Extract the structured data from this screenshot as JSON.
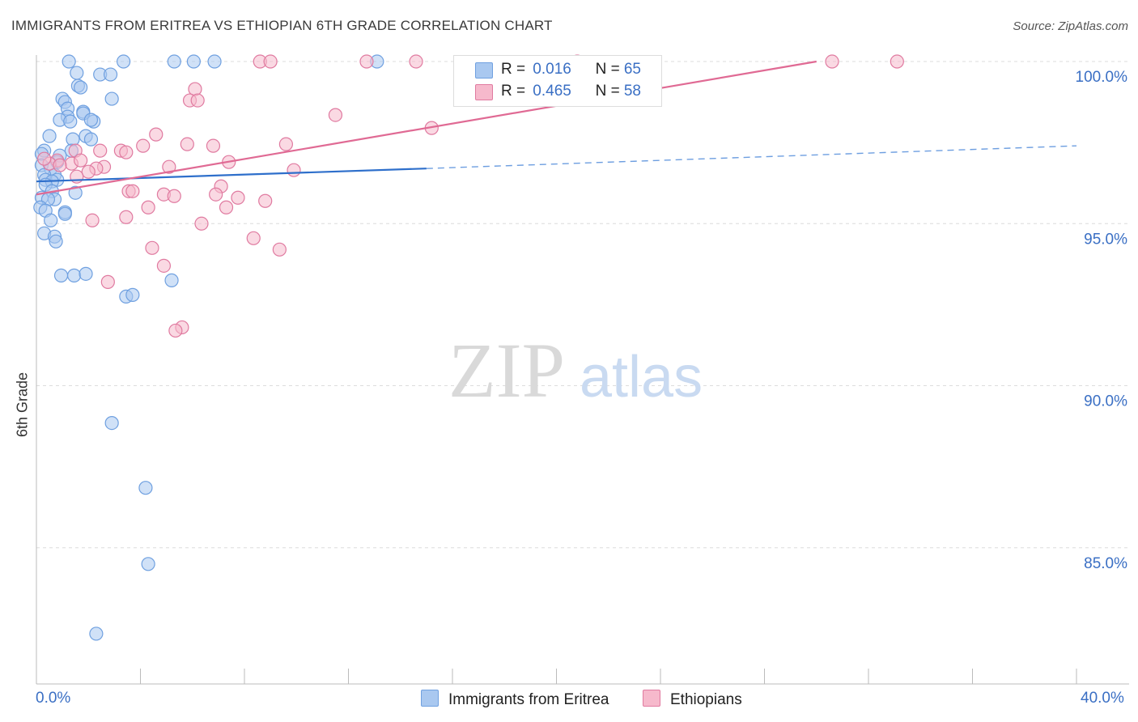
{
  "title": "IMMIGRANTS FROM ERITREA VS ETHIOPIAN 6TH GRADE CORRELATION CHART",
  "source_prefix": "Source: ",
  "source_name": "ZipAtlas.com",
  "watermark": {
    "part1": "ZIP",
    "part2": "atlas"
  },
  "legend": {
    "rows": [
      {
        "r_label": "R =",
        "r_value": "0.016",
        "n_label": "N =",
        "n_value": "65",
        "color": "#a9c8f0"
      },
      {
        "r_label": "R =",
        "r_value": "0.465",
        "n_label": "N =",
        "n_value": "58",
        "color": "#f6b9cc"
      }
    ]
  },
  "bottom_legend": [
    {
      "label": "Immigrants from Eritrea",
      "color": "#a9c8f0"
    },
    {
      "label": "Ethiopians",
      "color": "#f6b9cc"
    }
  ],
  "axis": {
    "x_min_label": "0.0%",
    "x_max_label": "40.0%",
    "ylabel": "6th Grade"
  },
  "chart_data": {
    "type": "scatter",
    "title": "IMMIGRANTS FROM ERITREA VS ETHIOPIAN 6TH GRADE CORRELATION CHART",
    "xlabel": "",
    "ylabel": "6th Grade",
    "xlim": [
      0,
      40
    ],
    "ylim": [
      80.8,
      100.4
    ],
    "y_ticks": [
      85,
      90,
      95,
      100
    ],
    "y_tick_labels": [
      "85.0%",
      "90.0%",
      "95.0%",
      "100.0%"
    ],
    "x_tick_labels": [
      "0.0%",
      "40.0%"
    ],
    "grid": "horizontal dashed",
    "series": [
      {
        "name": "Immigrants from Eritrea",
        "color": "#6fa0e0",
        "fill": "#a9c8f0",
        "r": 0.016,
        "n": 65,
        "trend": {
          "x0": 0.0,
          "y0": 96.3,
          "x1": 15.0,
          "y1": 96.7,
          "dashed_to_x": 40.0,
          "dashed_to_y": 97.4
        },
        "points": [
          [
            1.25,
            100.0
          ],
          [
            3.35,
            100.0
          ],
          [
            5.3,
            100.0
          ],
          [
            6.05,
            100.0
          ],
          [
            6.85,
            100.0
          ],
          [
            13.1,
            100.0
          ],
          [
            1.55,
            99.65
          ],
          [
            2.45,
            99.6
          ],
          [
            2.85,
            99.6
          ],
          [
            1.6,
            99.25
          ],
          [
            1.7,
            99.2
          ],
          [
            1.0,
            98.85
          ],
          [
            2.9,
            98.85
          ],
          [
            1.1,
            98.75
          ],
          [
            1.2,
            98.55
          ],
          [
            1.8,
            98.45
          ],
          [
            1.8,
            98.4
          ],
          [
            1.2,
            98.3
          ],
          [
            0.9,
            98.2
          ],
          [
            2.2,
            98.15
          ],
          [
            1.3,
            98.15
          ],
          [
            2.1,
            98.2
          ],
          [
            0.5,
            97.7
          ],
          [
            1.9,
            97.7
          ],
          [
            2.1,
            97.6
          ],
          [
            1.4,
            97.6
          ],
          [
            1.35,
            97.25
          ],
          [
            0.3,
            97.25
          ],
          [
            0.2,
            97.15
          ],
          [
            0.9,
            97.1
          ],
          [
            0.8,
            96.9
          ],
          [
            0.2,
            96.8
          ],
          [
            0.55,
            96.7
          ],
          [
            0.7,
            96.5
          ],
          [
            0.3,
            96.5
          ],
          [
            0.35,
            96.35
          ],
          [
            0.8,
            96.35
          ],
          [
            0.6,
            96.3
          ],
          [
            0.35,
            96.2
          ],
          [
            0.6,
            96.0
          ],
          [
            1.5,
            95.95
          ],
          [
            0.2,
            95.8
          ],
          [
            0.7,
            95.75
          ],
          [
            0.45,
            95.75
          ],
          [
            0.15,
            95.5
          ],
          [
            0.35,
            95.4
          ],
          [
            1.1,
            95.35
          ],
          [
            1.1,
            95.3
          ],
          [
            0.55,
            95.1
          ],
          [
            0.3,
            94.7
          ],
          [
            0.7,
            94.6
          ],
          [
            0.75,
            94.45
          ],
          [
            0.95,
            93.4
          ],
          [
            1.45,
            93.4
          ],
          [
            1.9,
            93.45
          ],
          [
            5.2,
            93.25
          ],
          [
            3.45,
            92.75
          ],
          [
            3.7,
            92.8
          ],
          [
            2.9,
            88.85
          ],
          [
            4.2,
            86.85
          ],
          [
            4.3,
            84.5
          ],
          [
            2.3,
            82.35
          ]
        ]
      },
      {
        "name": "Ethiopians",
        "color": "#e07aa0",
        "fill": "#f6b9cc",
        "r": 0.465,
        "n": 58,
        "trend": {
          "x0": 0.0,
          "y0": 95.9,
          "x1": 30.0,
          "y1": 100.0
        },
        "points": [
          [
            8.6,
            100.0
          ],
          [
            9.0,
            100.0
          ],
          [
            12.7,
            100.0
          ],
          [
            14.6,
            100.0
          ],
          [
            20.8,
            100.0
          ],
          [
            30.6,
            100.0
          ],
          [
            33.1,
            100.0
          ],
          [
            6.1,
            99.15
          ],
          [
            5.9,
            98.8
          ],
          [
            6.2,
            98.8
          ],
          [
            11.5,
            98.35
          ],
          [
            15.2,
            97.95
          ],
          [
            4.6,
            97.75
          ],
          [
            5.8,
            97.45
          ],
          [
            6.8,
            97.4
          ],
          [
            9.6,
            97.45
          ],
          [
            4.1,
            97.4
          ],
          [
            3.25,
            97.25
          ],
          [
            2.45,
            97.25
          ],
          [
            3.45,
            97.2
          ],
          [
            1.5,
            97.25
          ],
          [
            7.4,
            96.9
          ],
          [
            0.8,
            96.95
          ],
          [
            1.35,
            96.85
          ],
          [
            0.5,
            96.85
          ],
          [
            5.1,
            96.75
          ],
          [
            2.6,
            96.75
          ],
          [
            2.3,
            96.7
          ],
          [
            2.0,
            96.6
          ],
          [
            9.9,
            96.65
          ],
          [
            1.55,
            96.45
          ],
          [
            7.1,
            96.15
          ],
          [
            3.55,
            96.0
          ],
          [
            3.7,
            96.0
          ],
          [
            4.9,
            95.9
          ],
          [
            5.3,
            95.85
          ],
          [
            6.9,
            95.9
          ],
          [
            7.75,
            95.8
          ],
          [
            8.8,
            95.7
          ],
          [
            7.3,
            95.5
          ],
          [
            4.3,
            95.5
          ],
          [
            3.45,
            95.2
          ],
          [
            2.15,
            95.1
          ],
          [
            6.35,
            95.0
          ],
          [
            8.35,
            94.55
          ],
          [
            9.35,
            94.2
          ],
          [
            4.45,
            94.25
          ],
          [
            4.9,
            93.7
          ],
          [
            2.75,
            93.2
          ],
          [
            5.6,
            91.8
          ],
          [
            5.35,
            91.7
          ],
          [
            0.3,
            97.0
          ],
          [
            1.7,
            96.95
          ],
          [
            0.9,
            96.8
          ]
        ]
      }
    ]
  }
}
